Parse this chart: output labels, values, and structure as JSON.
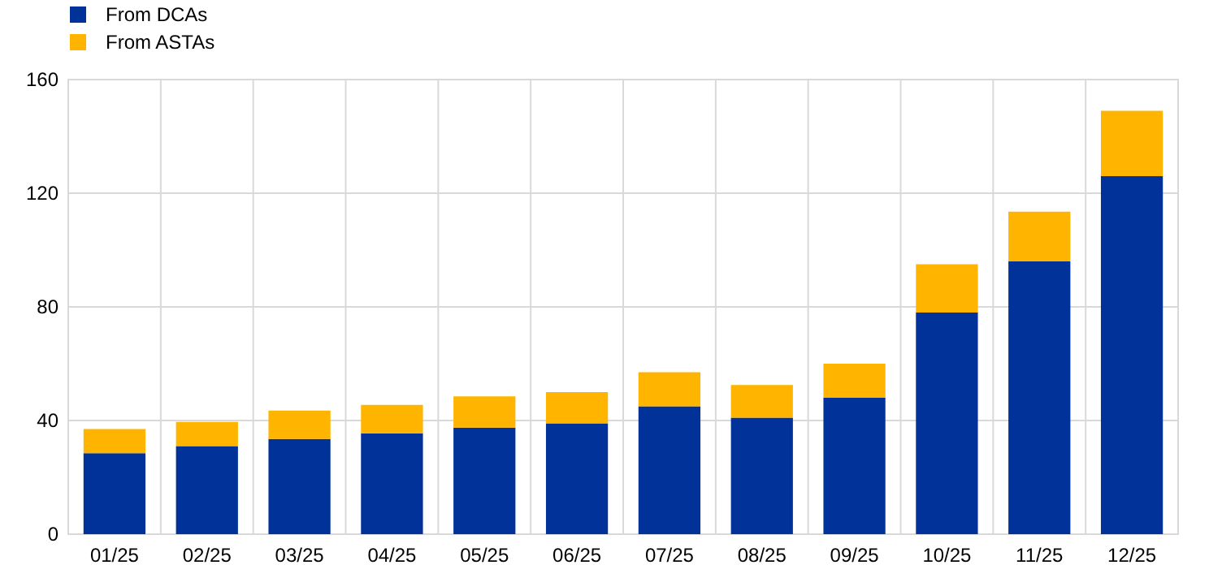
{
  "chart_data": {
    "type": "bar",
    "stacked": true,
    "categories": [
      "01/25",
      "02/25",
      "03/25",
      "04/25",
      "05/25",
      "06/25",
      "07/25",
      "08/25",
      "09/25",
      "10/25",
      "11/25",
      "12/25"
    ],
    "series": [
      {
        "name": "From DCAs",
        "color": "#003299",
        "values": [
          28.5,
          31,
          33.5,
          35.5,
          37.5,
          39,
          45,
          41,
          48,
          78,
          96,
          126
        ]
      },
      {
        "name": "From ASTAs",
        "color": "#ffb400",
        "values": [
          8.5,
          8.5,
          10,
          10,
          11,
          11,
          12,
          11.5,
          12,
          17,
          17.5,
          23
        ]
      }
    ],
    "ylim": [
      0,
      160
    ],
    "yticks": [
      0,
      40,
      80,
      120,
      160
    ],
    "grid": true,
    "legend": "top left"
  }
}
